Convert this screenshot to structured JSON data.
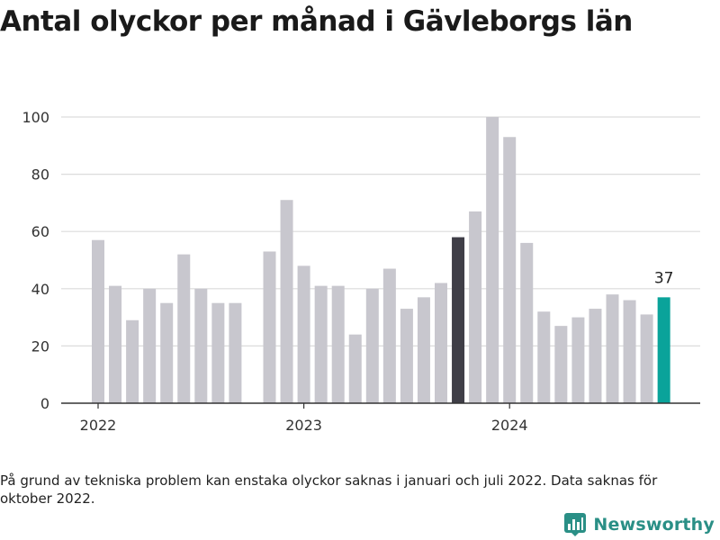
{
  "title": "Antal olyckor per månad i Gävleborgs län",
  "footnote": "På grund av tekniska problem kan enstaka olyckor saknas i januari och juli 2022. Data saknas för oktober 2022.",
  "brand": {
    "name": "Newsworthy",
    "icon": "bar-chart-logo-icon"
  },
  "colors": {
    "bar_default": "#c8c7ce",
    "bar_highlight_dark": "#3f3e47",
    "bar_latest": "#0aa39a",
    "grid": "#dcdcdc",
    "axis": "#333333",
    "text": "#333333",
    "brand": "#2a8f86"
  },
  "chart_data": {
    "type": "bar",
    "title": "Antal olyckor per månad i Gävleborgs län",
    "xlabel": "",
    "ylabel": "",
    "ylim": [
      0,
      100
    ],
    "yticks": [
      0,
      20,
      40,
      60,
      80,
      100
    ],
    "grid": true,
    "x_tick_labels": [
      {
        "label": "2022",
        "index": 0
      },
      {
        "label": "2023",
        "index": 12
      },
      {
        "label": "2024",
        "index": 24
      }
    ],
    "months": [
      "2022-01",
      "2022-02",
      "2022-03",
      "2022-04",
      "2022-05",
      "2022-06",
      "2022-07",
      "2022-08",
      "2022-09",
      "2022-10",
      "2022-11",
      "2022-12",
      "2023-01",
      "2023-02",
      "2023-03",
      "2023-04",
      "2023-05",
      "2023-06",
      "2023-07",
      "2023-08",
      "2023-09",
      "2023-10",
      "2023-11",
      "2023-12",
      "2024-01",
      "2024-02",
      "2024-03",
      "2024-04",
      "2024-05",
      "2024-06",
      "2024-07",
      "2024-08",
      "2024-09",
      "2024-10"
    ],
    "values": [
      57,
      41,
      29,
      40,
      35,
      52,
      40,
      35,
      35,
      null,
      53,
      71,
      48,
      41,
      41,
      24,
      40,
      47,
      33,
      37,
      42,
      58,
      67,
      100,
      93,
      56,
      32,
      27,
      30,
      33,
      38,
      36,
      31,
      37
    ],
    "highlight_dark": "2023-10",
    "highlight_latest": "2024-10",
    "data_labels": [
      {
        "month": "2024-10",
        "text": "37"
      }
    ]
  }
}
